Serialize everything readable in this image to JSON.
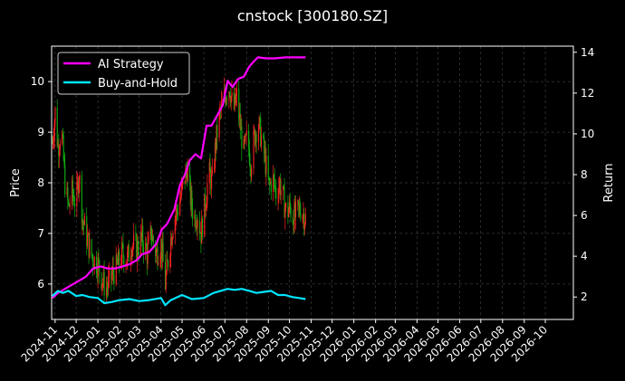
{
  "chart_data": {
    "type": "line",
    "title": "cnstock [300180.SZ]",
    "ylabel_left": "Price",
    "ylabel_right": "Return",
    "ylim_left": [
      5.3,
      10.7
    ],
    "ylim_right": [
      0.9,
      14.3
    ],
    "yticks_left": [
      6,
      7,
      8,
      9,
      10
    ],
    "yticks_right": [
      2,
      4,
      6,
      8,
      10,
      12,
      14
    ],
    "xlim": [
      "2024-10-27",
      "2026-11-10"
    ],
    "xticks": [
      "2024-11",
      "2024-12",
      "2025-01",
      "2025-02",
      "2025-03",
      "2025-04",
      "2025-05",
      "2025-06",
      "2025-07",
      "2025-08",
      "2025-09",
      "2025-10",
      "2025-11",
      "2025-12",
      "2026-01",
      "2026-02",
      "2026-03",
      "2026-04",
      "2026-05",
      "2026-06",
      "2026-07",
      "2026-08",
      "2026-09",
      "2026-10"
    ],
    "grid": true,
    "legend_position": "top-left",
    "colors": {
      "up": "#ff2222",
      "down": "#11aa11",
      "ai": "#ff00ff",
      "bh": "#00e5ff",
      "background": "#000000",
      "grid": "#555555"
    },
    "series": [
      {
        "name": "AI Strategy",
        "axis": "right",
        "color": "#ff00ff",
        "points": [
          [
            "2024-10-28",
            1.95
          ],
          [
            "2024-11-05",
            2.2
          ],
          [
            "2024-11-15",
            2.4
          ],
          [
            "2024-11-25",
            2.6
          ],
          [
            "2024-12-05",
            2.8
          ],
          [
            "2024-12-15",
            3.0
          ],
          [
            "2024-12-25",
            3.4
          ],
          [
            "2025-01-05",
            3.5
          ],
          [
            "2025-01-15",
            3.4
          ],
          [
            "2025-01-25",
            3.4
          ],
          [
            "2025-02-05",
            3.5
          ],
          [
            "2025-02-15",
            3.6
          ],
          [
            "2025-02-25",
            3.8
          ],
          [
            "2025-03-05",
            4.1
          ],
          [
            "2025-03-15",
            4.2
          ],
          [
            "2025-03-25",
            4.6
          ],
          [
            "2025-04-02",
            5.3
          ],
          [
            "2025-04-10",
            5.6
          ],
          [
            "2025-04-20",
            6.3
          ],
          [
            "2025-04-28",
            7.5
          ],
          [
            "2025-05-05",
            8.0
          ],
          [
            "2025-05-12",
            8.7
          ],
          [
            "2025-05-20",
            9.0
          ],
          [
            "2025-05-28",
            8.8
          ],
          [
            "2025-06-05",
            10.4
          ],
          [
            "2025-06-12",
            10.4
          ],
          [
            "2025-06-20",
            10.9
          ],
          [
            "2025-06-28",
            11.4
          ],
          [
            "2025-07-05",
            12.6
          ],
          [
            "2025-07-12",
            12.3
          ],
          [
            "2025-07-20",
            12.7
          ],
          [
            "2025-07-28",
            12.8
          ],
          [
            "2025-08-05",
            13.3
          ],
          [
            "2025-08-10",
            13.5
          ],
          [
            "2025-08-17",
            13.75
          ],
          [
            "2025-08-30",
            13.7
          ],
          [
            "2025-09-10",
            13.7
          ],
          [
            "2025-09-25",
            13.75
          ],
          [
            "2025-10-10",
            13.75
          ],
          [
            "2025-10-24",
            13.75
          ]
        ]
      },
      {
        "name": "Buy-and-Hold",
        "axis": "right",
        "color": "#00e5ff",
        "points": [
          [
            "2024-10-28",
            2.05
          ],
          [
            "2024-11-05",
            2.3
          ],
          [
            "2024-11-12",
            2.2
          ],
          [
            "2024-11-20",
            2.3
          ],
          [
            "2024-12-01",
            2.05
          ],
          [
            "2024-12-10",
            2.1
          ],
          [
            "2024-12-20",
            2.0
          ],
          [
            "2025-01-01",
            1.95
          ],
          [
            "2025-01-10",
            1.7
          ],
          [
            "2025-01-20",
            1.75
          ],
          [
            "2025-02-01",
            1.85
          ],
          [
            "2025-02-15",
            1.9
          ],
          [
            "2025-03-01",
            1.8
          ],
          [
            "2025-03-15",
            1.85
          ],
          [
            "2025-04-01",
            1.95
          ],
          [
            "2025-04-07",
            1.6
          ],
          [
            "2025-04-15",
            1.85
          ],
          [
            "2025-05-01",
            2.1
          ],
          [
            "2025-05-15",
            1.9
          ],
          [
            "2025-06-01",
            1.95
          ],
          [
            "2025-06-15",
            2.2
          ],
          [
            "2025-06-25",
            2.3
          ],
          [
            "2025-07-05",
            2.4
          ],
          [
            "2025-07-15",
            2.35
          ],
          [
            "2025-07-25",
            2.4
          ],
          [
            "2025-08-05",
            2.3
          ],
          [
            "2025-08-15",
            2.2
          ],
          [
            "2025-08-25",
            2.25
          ],
          [
            "2025-09-05",
            2.3
          ],
          [
            "2025-09-15",
            2.1
          ],
          [
            "2025-09-25",
            2.1
          ],
          [
            "2025-10-05",
            2.0
          ],
          [
            "2025-10-15",
            1.95
          ],
          [
            "2025-10-24",
            1.9
          ]
        ]
      },
      {
        "name": "",
        "type": "candlestick",
        "axis": "left",
        "points": [
          [
            "2024-10-28",
            8.8
          ],
          [
            "2024-11-01",
            9.4
          ],
          [
            "2024-11-05",
            8.7
          ],
          [
            "2024-11-10",
            9.1
          ],
          [
            "2024-11-15",
            8.0
          ],
          [
            "2024-11-20",
            7.5
          ],
          [
            "2024-11-25",
            7.8
          ],
          [
            "2024-12-01",
            7.6
          ],
          [
            "2024-12-05",
            8.2
          ],
          [
            "2024-12-10",
            7.3
          ],
          [
            "2024-12-15",
            7.0
          ],
          [
            "2024-12-20",
            6.7
          ],
          [
            "2024-12-25",
            6.5
          ],
          [
            "2025-01-01",
            6.4
          ],
          [
            "2025-01-07",
            6.1
          ],
          [
            "2025-01-12",
            5.9
          ],
          [
            "2025-01-17",
            6.0
          ],
          [
            "2025-01-22",
            6.2
          ],
          [
            "2025-01-27",
            6.3
          ],
          [
            "2025-02-05",
            6.6
          ],
          [
            "2025-02-12",
            6.5
          ],
          [
            "2025-02-18",
            6.8
          ],
          [
            "2025-02-25",
            6.7
          ],
          [
            "2025-03-05",
            6.9
          ],
          [
            "2025-03-12",
            6.6
          ],
          [
            "2025-03-18",
            7.0
          ],
          [
            "2025-03-25",
            6.6
          ],
          [
            "2025-04-01",
            6.8
          ],
          [
            "2025-04-07",
            6.0
          ],
          [
            "2025-04-12",
            6.6
          ],
          [
            "2025-04-18",
            7.2
          ],
          [
            "2025-04-25",
            7.5
          ],
          [
            "2025-05-02",
            7.9
          ],
          [
            "2025-05-08",
            8.3
          ],
          [
            "2025-05-13",
            7.7
          ],
          [
            "2025-05-18",
            7.3
          ],
          [
            "2025-05-23",
            7.4
          ],
          [
            "2025-05-28",
            7.0
          ],
          [
            "2025-06-03",
            7.6
          ],
          [
            "2025-06-08",
            8.2
          ],
          [
            "2025-06-13",
            8.0
          ],
          [
            "2025-06-18",
            8.8
          ],
          [
            "2025-06-23",
            9.3
          ],
          [
            "2025-06-28",
            9.6
          ],
          [
            "2025-07-03",
            9.8
          ],
          [
            "2025-07-08",
            9.9
          ],
          [
            "2025-07-13",
            9.4
          ],
          [
            "2025-07-18",
            9.7
          ],
          [
            "2025-07-23",
            9.1
          ],
          [
            "2025-07-28",
            8.6
          ],
          [
            "2025-08-02",
            8.9
          ],
          [
            "2025-08-07",
            8.4
          ],
          [
            "2025-08-12",
            8.9
          ],
          [
            "2025-08-17",
            9.2
          ],
          [
            "2025-08-22",
            8.9
          ],
          [
            "2025-08-27",
            8.5
          ],
          [
            "2025-09-02",
            7.9
          ],
          [
            "2025-09-07",
            8.1
          ],
          [
            "2025-09-12",
            7.8
          ],
          [
            "2025-09-17",
            8.0
          ],
          [
            "2025-09-22",
            7.7
          ],
          [
            "2025-09-27",
            7.4
          ],
          [
            "2025-10-02",
            7.5
          ],
          [
            "2025-10-07",
            7.3
          ],
          [
            "2025-10-12",
            7.4
          ],
          [
            "2025-10-17",
            7.5
          ],
          [
            "2025-10-24",
            7.3
          ]
        ]
      }
    ]
  }
}
